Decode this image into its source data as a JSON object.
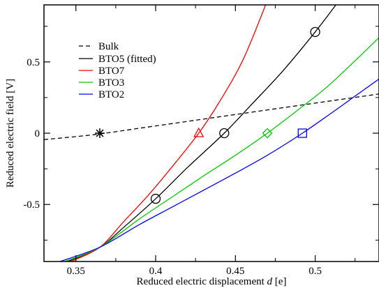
{
  "chart_data": {
    "type": "line",
    "xlabel_prefix": "Reduced electric displacement ",
    "xlabel_var": "d",
    "xlabel_unit": " [e]",
    "ylabel": "Reduced electric field [V]",
    "xlim": [
      0.33,
      0.54
    ],
    "ylim": [
      -0.9,
      0.9
    ],
    "xticks": [
      0.35,
      0.4,
      0.45,
      0.5
    ],
    "xtick_labels": [
      "0.35",
      "0.4",
      "0.45",
      "0.5"
    ],
    "yticks": [
      -0.5,
      0,
      0.5
    ],
    "ytick_labels": [
      "-0.5",
      "0",
      "0.5"
    ],
    "grid": false,
    "legend_position": "top-left",
    "series": [
      {
        "name": "Bulk",
        "color": "#000000",
        "style": "dashed",
        "x": [
          0.33,
          0.36,
          0.39,
          0.42,
          0.45,
          0.48,
          0.51,
          0.54
        ],
        "y": [
          -0.045,
          -0.012,
          0.035,
          0.083,
          0.131,
          0.179,
          0.227,
          0.275
        ]
      },
      {
        "name": "BTO5 (fitted)",
        "color": "#000000",
        "style": "solid",
        "x": [
          0.345,
          0.365,
          0.38,
          0.4,
          0.42,
          0.443,
          0.46,
          0.48,
          0.5,
          0.515
        ],
        "y": [
          -0.9,
          -0.8,
          -0.66,
          -0.46,
          -0.24,
          0.0,
          0.2,
          0.44,
          0.71,
          0.93
        ]
      },
      {
        "name": "BTO7",
        "color": "#ff0000",
        "style": "solid",
        "x": [
          0.347,
          0.365,
          0.38,
          0.395,
          0.41,
          0.427,
          0.44,
          0.455,
          0.47
        ],
        "y": [
          -0.9,
          -0.8,
          -0.62,
          -0.44,
          -0.24,
          0.0,
          0.22,
          0.52,
          0.93
        ]
      },
      {
        "name": "BTO3",
        "color": "#00cc00",
        "style": "solid",
        "x": [
          0.343,
          0.365,
          0.39,
          0.41,
          0.43,
          0.45,
          0.47,
          0.49,
          0.51,
          0.54
        ],
        "y": [
          -0.9,
          -0.8,
          -0.6,
          -0.45,
          -0.3,
          -0.155,
          0.0,
          0.17,
          0.35,
          0.67
        ]
      },
      {
        "name": "BTO2",
        "color": "#0000ff",
        "style": "solid",
        "x": [
          0.34,
          0.365,
          0.39,
          0.41,
          0.43,
          0.45,
          0.47,
          0.492,
          0.51,
          0.525,
          0.54
        ],
        "y": [
          -0.9,
          -0.8,
          -0.64,
          -0.52,
          -0.4,
          -0.28,
          -0.155,
          0.0,
          0.14,
          0.26,
          0.38
        ]
      }
    ],
    "markers": [
      {
        "series": "Bulk",
        "shape": "star",
        "color": "#000000",
        "x": 0.365,
        "y": 0.0
      },
      {
        "series": "BTO5 (fitted)",
        "shape": "circle",
        "color": "#000000",
        "x": 0.4,
        "y": -0.46
      },
      {
        "series": "BTO5 (fitted)",
        "shape": "circle",
        "color": "#000000",
        "x": 0.443,
        "y": 0.0
      },
      {
        "series": "BTO5 (fitted)",
        "shape": "circle",
        "color": "#000000",
        "x": 0.5,
        "y": 0.71
      },
      {
        "series": "BTO7",
        "shape": "triangle",
        "color": "#ff0000",
        "x": 0.427,
        "y": 0.0
      },
      {
        "series": "BTO3",
        "shape": "diamond",
        "color": "#00cc00",
        "x": 0.47,
        "y": 0.0
      },
      {
        "series": "BTO2",
        "shape": "square",
        "color": "#0000ff",
        "x": 0.492,
        "y": 0.0
      }
    ]
  }
}
